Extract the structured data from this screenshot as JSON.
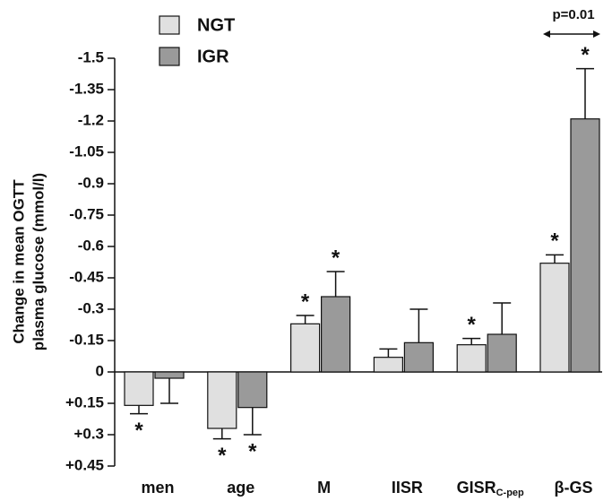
{
  "chart_data": {
    "type": "bar",
    "y_label": [
      "Change in mean OGTT",
      "plasma glucose (mmol/l)"
    ],
    "categories": [
      "men",
      "age",
      "M",
      "IISR",
      "GISR",
      "β-GS"
    ],
    "category_subscripts": [
      null,
      null,
      null,
      null,
      "C-pep",
      null
    ],
    "series": [
      {
        "name": "NGT",
        "color": "#e0e0e0",
        "values": [
          0.16,
          0.27,
          -0.23,
          -0.07,
          -0.13,
          -0.52
        ],
        "errors": [
          0.04,
          0.05,
          0.04,
          0.04,
          0.03,
          0.04
        ],
        "annotations": [
          "*",
          "*",
          "*",
          null,
          "*",
          "*"
        ]
      },
      {
        "name": "IGR",
        "color": "#9a9a9a",
        "values": [
          0.03,
          0.17,
          -0.36,
          -0.14,
          -0.18,
          -1.21
        ],
        "errors": [
          0.12,
          0.13,
          0.12,
          0.16,
          0.15,
          0.24
        ],
        "annotations": [
          null,
          "*",
          "*",
          null,
          null,
          "*"
        ]
      }
    ],
    "ylim": [
      0.45,
      -1.5
    ],
    "yticks": [
      -1.5,
      -1.35,
      -1.2,
      -1.05,
      -0.9,
      -0.75,
      -0.6,
      -0.45,
      -0.3,
      -0.15,
      0,
      {
        "value": 0.15,
        "label": "+0.15"
      },
      {
        "value": 0.3,
        "label": "+0.3"
      },
      {
        "value": 0.45,
        "label": "+0.45"
      }
    ],
    "comparison": {
      "label": "p=0.01",
      "category": 5
    }
  }
}
